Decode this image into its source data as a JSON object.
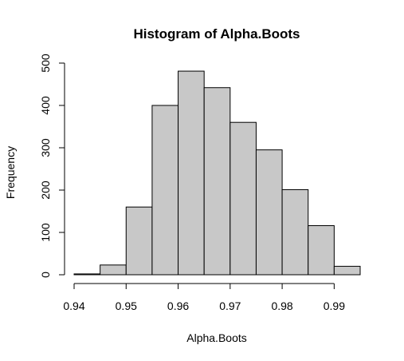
{
  "chart_data": {
    "type": "bar",
    "title": "Histogram of Alpha.Boots",
    "xlabel": "Alpha.Boots",
    "ylabel": "Frequency",
    "bin_edges": [
      0.94,
      0.945,
      0.95,
      0.955,
      0.96,
      0.965,
      0.97,
      0.975,
      0.98,
      0.985,
      0.99,
      0.995
    ],
    "values": [
      2,
      23,
      160,
      400,
      481,
      442,
      360,
      295,
      201,
      116,
      20
    ],
    "xlim": [
      0.94,
      0.995
    ],
    "ylim": [
      0,
      500
    ],
    "x_ticks": [
      0.94,
      0.95,
      0.96,
      0.97,
      0.98,
      0.99
    ],
    "x_tick_labels": [
      "0.94",
      "0.95",
      "0.96",
      "0.97",
      "0.98",
      "0.99"
    ],
    "y_ticks": [
      0,
      100,
      200,
      300,
      400,
      500
    ],
    "y_tick_labels": [
      "0",
      "100",
      "200",
      "300",
      "400",
      "500"
    ],
    "bar_color": "#c8c8c8",
    "grid": false
  }
}
